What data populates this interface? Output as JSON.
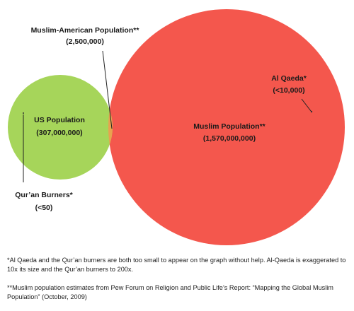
{
  "diagram": {
    "circles": [
      {
        "id": "muslim",
        "label": "Muslim Population**",
        "value_label": "(1,570,000,000)",
        "population": 1570000000,
        "color": "#f4574d"
      },
      {
        "id": "us",
        "label": "US Population",
        "value_label": "(307,000,000)",
        "population": 307000000,
        "color": "#a6d55a"
      }
    ],
    "overlap_color": "#e8a24f",
    "callouts": {
      "muslim_american": {
        "label": "Muslim-American Population**",
        "value_label": "(2,500,000)",
        "population": 2500000
      },
      "al_qaeda": {
        "label": "Al Qaeda*",
        "value_label": "(<10,000)"
      },
      "quran_burners": {
        "label": "Qur’an Burners*",
        "value_label": "(<50)"
      }
    }
  },
  "footnotes": [
    "*Al Qaeda and the Qur’an burners are both too small to appear on the graph without help. Al-Qaeda is exaggerated to 10x its size and the Qur’an burners to 200x.",
    "**Muslim population estimates from Pew Forum on Religion and Public Life’s Report: “Mapping the Global Muslim Population” (October, 2009)"
  ]
}
